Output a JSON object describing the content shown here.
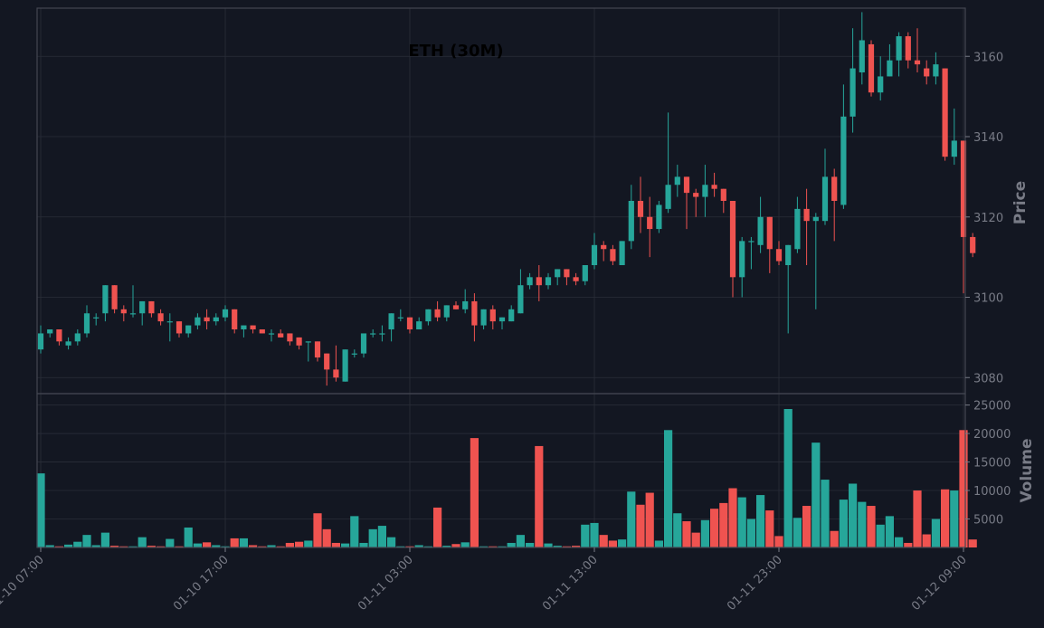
{
  "chart_data": {
    "type": "candlestick",
    "title": "ETH (30M)",
    "price_axis": {
      "label": "Price",
      "ylim": [
        3076,
        3172
      ],
      "ticks": [
        3080,
        3100,
        3120,
        3140,
        3160
      ]
    },
    "volume_axis": {
      "label": "Volume",
      "ylim": [
        0,
        27000
      ],
      "ticks": [
        5000,
        10000,
        15000,
        20000,
        25000
      ],
      "tick_labels": [
        "5000",
        "10000",
        "15000",
        "20000",
        "25000"
      ]
    },
    "x_ticks": [
      {
        "index": 0,
        "label": "01-10 07:00"
      },
      {
        "index": 20,
        "label": "01-10 17:00"
      },
      {
        "index": 40,
        "label": "01-11 03:00"
      },
      {
        "index": 60,
        "label": "01-11 13:00"
      },
      {
        "index": 80,
        "label": "01-11 23:00"
      },
      {
        "index": 100,
        "label": "01-12 09:00"
      }
    ],
    "colors": {
      "up": "#26a69a",
      "down": "#ef5350",
      "background": "#131722",
      "grid": "#2a2e39",
      "axis_text": "#787b86",
      "title": "#000000"
    },
    "grid": true,
    "candles": [
      [
        3087,
        3091,
        3093,
        3086,
        13000
      ],
      [
        3091,
        3092,
        3092,
        3090,
        400
      ],
      [
        3092,
        3089,
        3092,
        3088,
        200
      ],
      [
        3088,
        3089,
        3090,
        3087,
        500
      ],
      [
        3089,
        3091,
        3092,
        3088,
        1000
      ],
      [
        3091,
        3096,
        3098,
        3090,
        2200
      ],
      [
        3095,
        3095,
        3096,
        3093,
        400
      ],
      [
        3096,
        3103,
        3103,
        3094,
        2600
      ],
      [
        3103,
        3097,
        3103,
        3096,
        300
      ],
      [
        3097,
        3096,
        3098,
        3094,
        200
      ],
      [
        3096,
        3096,
        3103,
        3095,
        200
      ],
      [
        3096,
        3099,
        3099,
        3093,
        1800
      ],
      [
        3099,
        3096,
        3099,
        3095,
        300
      ],
      [
        3096,
        3094,
        3097,
        3093,
        200
      ],
      [
        3094,
        3094,
        3096,
        3089,
        1500
      ],
      [
        3094,
        3091,
        3094,
        3090,
        200
      ],
      [
        3091,
        3093,
        3093,
        3090,
        3500
      ],
      [
        3093,
        3095,
        3096,
        3092,
        700
      ],
      [
        3095,
        3094,
        3097,
        3092,
        900
      ],
      [
        3094,
        3095,
        3096,
        3093,
        400
      ],
      [
        3095,
        3097,
        3098,
        3094,
        200
      ],
      [
        3097,
        3092,
        3097,
        3091,
        1600
      ],
      [
        3092,
        3093,
        3093,
        3090,
        1600
      ],
      [
        3093,
        3092,
        3093,
        3091,
        400
      ],
      [
        3092,
        3091,
        3092,
        3091,
        200
      ],
      [
        3091,
        3091,
        3092,
        3089,
        400
      ],
      [
        3091,
        3090,
        3092,
        3090,
        200
      ],
      [
        3091,
        3089,
        3091,
        3088,
        800
      ],
      [
        3090,
        3088,
        3090,
        3087,
        1000
      ],
      [
        3089,
        3089,
        3089,
        3084,
        1200
      ],
      [
        3089,
        3085,
        3089,
        3084,
        6000
      ],
      [
        3086,
        3082,
        3086,
        3078,
        3200
      ],
      [
        3082,
        3080,
        3088,
        3079,
        800
      ],
      [
        3079,
        3087,
        3087,
        3079,
        700
      ],
      [
        3086,
        3086,
        3087,
        3085,
        5500
      ],
      [
        3086,
        3091,
        3091,
        3085,
        800
      ],
      [
        3091,
        3091,
        3092,
        3090,
        3200
      ],
      [
        3091,
        3091,
        3093,
        3089,
        3800
      ],
      [
        3092,
        3096,
        3096,
        3089,
        1800
      ],
      [
        3095,
        3095,
        3097,
        3094,
        200
      ],
      [
        3095,
        3092,
        3095,
        3091,
        200
      ],
      [
        3092,
        3094,
        3095,
        3092,
        400
      ],
      [
        3094,
        3097,
        3097,
        3093,
        200
      ],
      [
        3097,
        3095,
        3099,
        3094,
        7000
      ],
      [
        3095,
        3098,
        3098,
        3094,
        300
      ],
      [
        3098,
        3097,
        3099,
        3097,
        600
      ],
      [
        3097,
        3099,
        3102,
        3096,
        900
      ],
      [
        3099,
        3093,
        3101,
        3089,
        19200
      ],
      [
        3093,
        3097,
        3097,
        3092,
        200
      ],
      [
        3097,
        3094,
        3098,
        3092,
        200
      ],
      [
        3094,
        3095,
        3095,
        3092,
        200
      ],
      [
        3094,
        3097,
        3098,
        3094,
        800
      ],
      [
        3096,
        3103,
        3107,
        3096,
        2200
      ],
      [
        3103,
        3105,
        3106,
        3102,
        800
      ],
      [
        3105,
        3103,
        3108,
        3099,
        17800
      ],
      [
        3103,
        3105,
        3106,
        3102,
        700
      ],
      [
        3105,
        3107,
        3107,
        3103,
        300
      ],
      [
        3107,
        3105,
        3107,
        3103,
        200
      ],
      [
        3105,
        3104,
        3106,
        3103,
        300
      ],
      [
        3104,
        3108,
        3108,
        3103,
        4000
      ],
      [
        3108,
        3113,
        3116,
        3107,
        4300
      ],
      [
        3113,
        3112,
        3114,
        3109,
        2200
      ],
      [
        3112,
        3109,
        3113,
        3108,
        1200
      ],
      [
        3108,
        3114,
        3114,
        3108,
        1400
      ],
      [
        3114,
        3124,
        3128,
        3112,
        9800
      ],
      [
        3124,
        3120,
        3130,
        3116,
        7500
      ],
      [
        3120,
        3117,
        3125,
        3110,
        9600
      ],
      [
        3117,
        3123,
        3124,
        3116,
        1200
      ],
      [
        3122,
        3128,
        3146,
        3121,
        20600
      ],
      [
        3128,
        3130,
        3133,
        3125,
        6000
      ],
      [
        3130,
        3126,
        3130,
        3117,
        4600
      ],
      [
        3126,
        3125,
        3127,
        3120,
        2600
      ],
      [
        3125,
        3128,
        3133,
        3120,
        4800
      ],
      [
        3128,
        3127,
        3131,
        3125,
        6800
      ],
      [
        3127,
        3124,
        3127,
        3121,
        7800
      ],
      [
        3124,
        3105,
        3124,
        3100,
        10400
      ],
      [
        3105,
        3114,
        3115,
        3100,
        8800
      ],
      [
        3114,
        3114,
        3115,
        3107,
        5000
      ],
      [
        3113,
        3120,
        3125,
        3111,
        9200
      ],
      [
        3120,
        3112,
        3120,
        3106,
        6500
      ],
      [
        3112,
        3109,
        3114,
        3108,
        2000
      ],
      [
        3108,
        3113,
        3113,
        3091,
        24300
      ],
      [
        3112,
        3122,
        3125,
        3111,
        5200
      ],
      [
        3122,
        3119,
        3127,
        3108,
        7300
      ],
      [
        3119,
        3120,
        3121,
        3097,
        18400
      ],
      [
        3119,
        3130,
        3137,
        3118,
        11900
      ],
      [
        3130,
        3124,
        3132,
        3114,
        2900
      ],
      [
        3123,
        3145,
        3153,
        3122,
        8400
      ],
      [
        3145,
        3157,
        3167,
        3141,
        11200
      ],
      [
        3156,
        3164,
        3171,
        3153,
        8000
      ],
      [
        3163,
        3151,
        3164,
        3150,
        7300
      ],
      [
        3151,
        3155,
        3160,
        3149,
        4000
      ],
      [
        3155,
        3159,
        3163,
        3155,
        5500
      ],
      [
        3159,
        3165,
        3166,
        3155,
        1800
      ],
      [
        3165,
        3159,
        3166,
        3157,
        800
      ],
      [
        3159,
        3158,
        3167,
        3156,
        10000
      ],
      [
        3157,
        3155,
        3159,
        3153,
        2300
      ],
      [
        3155,
        3158,
        3161,
        3153,
        5000
      ],
      [
        3157,
        3135,
        3157,
        3134,
        10200
      ],
      [
        3135,
        3139,
        3147,
        3133,
        10000
      ],
      [
        3139,
        3115,
        3139,
        3101,
        20600
      ],
      [
        3115,
        3111,
        3116,
        3110,
        1400
      ]
    ]
  }
}
